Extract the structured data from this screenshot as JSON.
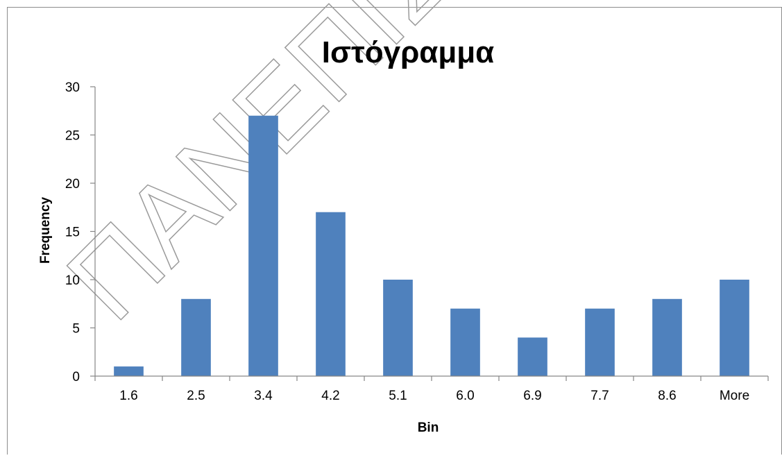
{
  "watermark": {
    "text": "ΠΑΝΕΠΙΣ",
    "color": "#9a9a9a"
  },
  "chart_data": {
    "type": "bar",
    "title": "Ιστόγραμμα",
    "xlabel": "Bin",
    "ylabel": "Frequency",
    "categories": [
      "1.6",
      "2.5",
      "3.4",
      "4.2",
      "5.1",
      "6.0",
      "6.9",
      "7.7",
      "8.6",
      "More"
    ],
    "values": [
      1,
      8,
      27,
      17,
      10,
      7,
      4,
      7,
      8,
      10
    ],
    "ylim": [
      0,
      30
    ],
    "yticks": [
      0,
      5,
      10,
      15,
      20,
      25,
      30
    ],
    "grid": false,
    "legend": "none",
    "bar_color": "#4F81BD"
  }
}
